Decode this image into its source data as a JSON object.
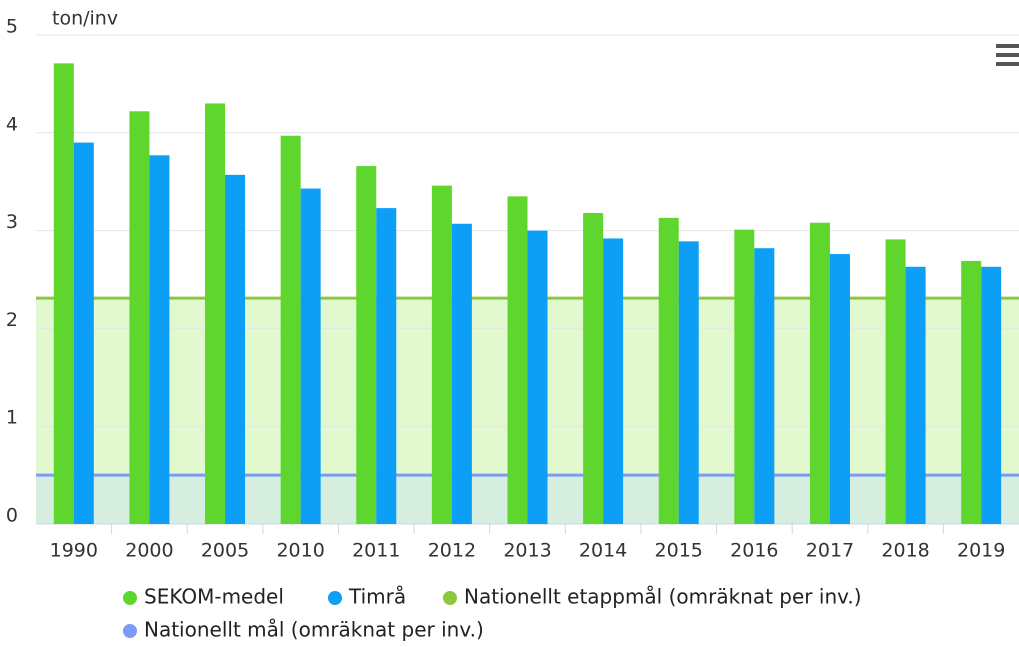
{
  "chart_data": {
    "type": "bar",
    "y_label": "ton/inv",
    "categories": [
      "1990",
      "2000",
      "2005",
      "2010",
      "2011",
      "2012",
      "2013",
      "2014",
      "2015",
      "2016",
      "2017",
      "2018",
      "2019"
    ],
    "series": [
      {
        "name": "SEKOM-medel",
        "color": "#5ed62e",
        "values": [
          4.71,
          4.22,
          4.3,
          3.97,
          3.66,
          3.46,
          3.35,
          3.18,
          3.13,
          3.01,
          3.08,
          2.91,
          2.69
        ]
      },
      {
        "name": "Timrå",
        "color": "#0d9ff5",
        "values": [
          3.9,
          3.77,
          3.57,
          3.43,
          3.23,
          3.07,
          3.0,
          2.92,
          2.89,
          2.82,
          2.76,
          2.63,
          2.63
        ]
      }
    ],
    "reference_lines": [
      {
        "name": "Nationellt etappmål (omräknat per inv.)",
        "color": "#8dc63f",
        "band_color": "#e2f9cf",
        "value": 2.31
      },
      {
        "name": "Nationellt mål (omräknat per inv.)",
        "color": "#7b9cf2",
        "band_color": "#d6eee0",
        "value": 0.5
      }
    ],
    "ylim": [
      0,
      5
    ],
    "yticks": [
      0,
      1,
      2,
      3,
      4,
      5
    ],
    "grid": true
  }
}
